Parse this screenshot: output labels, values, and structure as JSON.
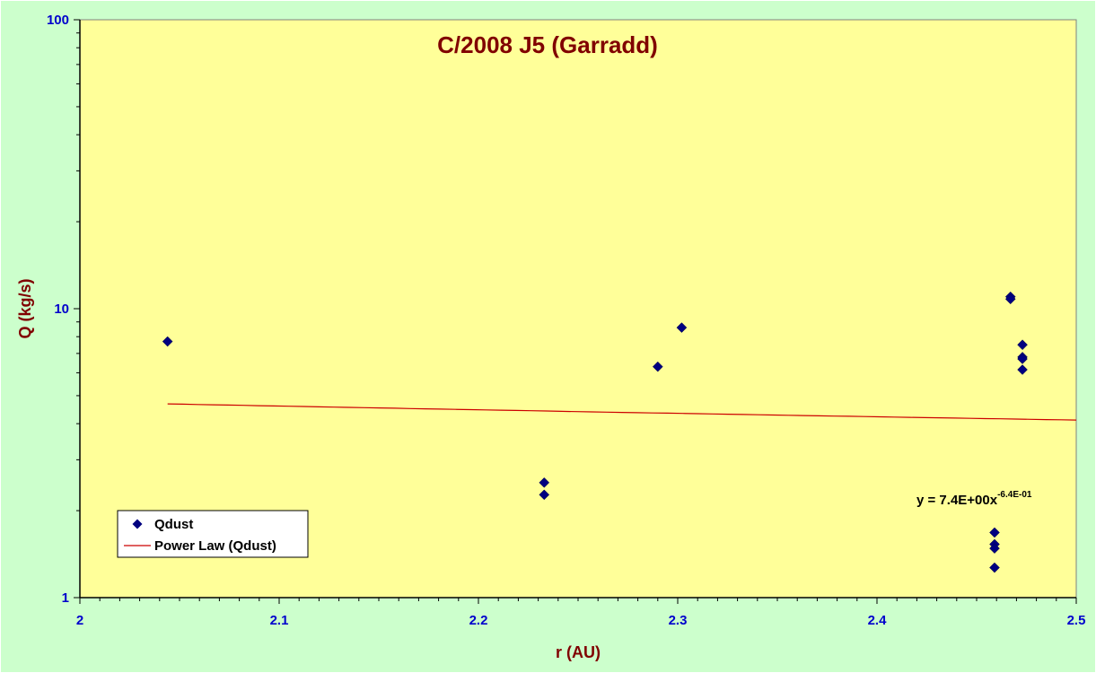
{
  "colors": {
    "background": "#ccffcc",
    "plot_area": "#ffff99",
    "axis_text": "#0000cc",
    "title_text": "#800000",
    "points": "#000080",
    "fit_line": "#cc0000"
  },
  "chart_data": {
    "type": "scatter",
    "title": "C/2008 J5 (Garradd)",
    "xlabel": "r (AU)",
    "ylabel": "Q (kg/s)",
    "xlim": [
      2,
      2.5
    ],
    "ylim": [
      1,
      100
    ],
    "yscale": "log",
    "x_ticks": [
      "2",
      "2.1",
      "2.2",
      "2.3",
      "2.4",
      "2.5"
    ],
    "y_ticks": [
      "1",
      "10",
      "100"
    ],
    "legend_position": "bottom-left",
    "series": [
      {
        "name": "Qdust",
        "marker": "diamond",
        "points": [
          [
            2.044,
            7.7
          ],
          [
            2.233,
            2.5
          ],
          [
            2.233,
            2.27
          ],
          [
            2.29,
            6.3
          ],
          [
            2.302,
            8.6
          ],
          [
            2.459,
            1.68
          ],
          [
            2.459,
            1.53
          ],
          [
            2.459,
            1.48
          ],
          [
            2.459,
            1.27
          ],
          [
            2.467,
            11.0
          ],
          [
            2.467,
            10.8
          ],
          [
            2.473,
            7.5
          ],
          [
            2.473,
            6.8
          ],
          [
            2.473,
            6.7
          ],
          [
            2.473,
            6.15
          ]
        ]
      },
      {
        "name": "Power Law (Qdust)",
        "type": "line",
        "fit": {
          "a": 7.4,
          "b": -0.64
        },
        "x_range": [
          2.044,
          2.5
        ],
        "equation_label": "y = 7.4E+00x",
        "equation_exponent": "-6.4E-01"
      }
    ]
  }
}
